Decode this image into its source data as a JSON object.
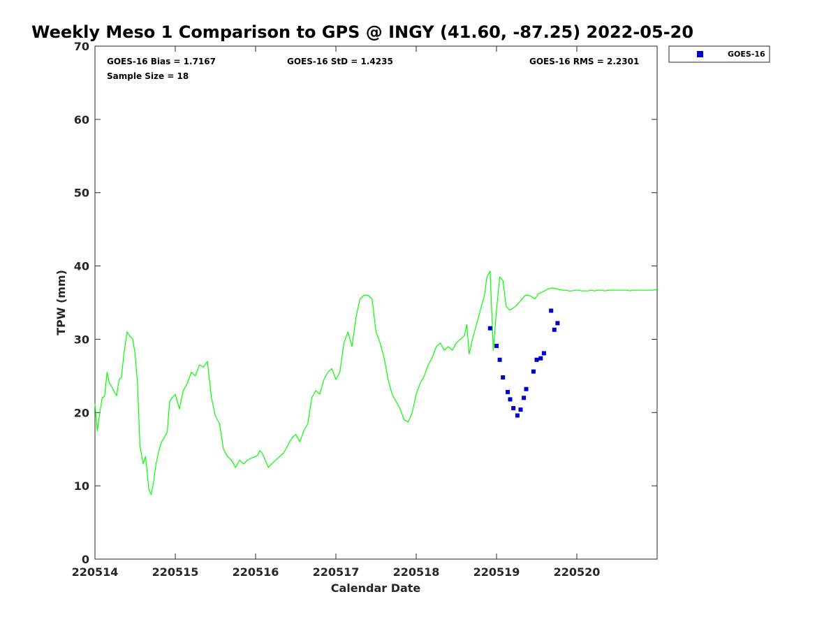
{
  "chart_data": {
    "type": "line",
    "title": "Weekly Meso 1 Comparison to GPS @ INGY (41.60, -87.25) 2022-05-20",
    "xlabel": "Calendar Date",
    "ylabel": "TPW (mm)",
    "xlim": [
      0,
      7
    ],
    "ylim": [
      0,
      70
    ],
    "x_tick_values": [
      0,
      1,
      2,
      3,
      4,
      5,
      6
    ],
    "x_tick_labels": [
      "220514",
      "220515",
      "220516",
      "220517",
      "220518",
      "220519",
      "220520"
    ],
    "y_ticks": [
      0,
      10,
      20,
      30,
      40,
      50,
      60,
      70
    ],
    "grid": false,
    "legend_position": "outside-top-right",
    "stats": {
      "bias": "GOES-16 Bias = 1.7167",
      "std": "GOES-16 StD = 1.4235",
      "rms": "GOES-16 RMS = 2.2301",
      "sample": "Sample Size = 18"
    },
    "series": [
      {
        "kind": "line",
        "color": "#00ff00",
        "x": [
          0.0,
          0.03,
          0.06,
          0.09,
          0.12,
          0.15,
          0.18,
          0.21,
          0.24,
          0.27,
          0.3,
          0.33,
          0.36,
          0.4,
          0.43,
          0.47,
          0.5,
          0.53,
          0.56,
          0.6,
          0.63,
          0.64,
          0.67,
          0.7,
          0.73,
          0.76,
          0.8,
          0.83,
          0.86,
          0.88,
          0.9,
          0.93,
          0.96,
          1.0,
          1.05,
          1.1,
          1.15,
          1.2,
          1.25,
          1.3,
          1.35,
          1.4,
          1.45,
          1.5,
          1.55,
          1.6,
          1.65,
          1.7,
          1.75,
          1.8,
          1.85,
          1.9,
          1.95,
          2.0,
          2.03,
          2.05,
          2.08,
          2.12,
          2.16,
          2.2,
          2.25,
          2.3,
          2.35,
          2.4,
          2.45,
          2.5,
          2.55,
          2.6,
          2.65,
          2.7,
          2.75,
          2.8,
          2.85,
          2.9,
          2.95,
          3.0,
          3.05,
          3.1,
          3.15,
          3.2,
          3.25,
          3.3,
          3.35,
          3.4,
          3.45,
          3.5,
          3.55,
          3.6,
          3.65,
          3.7,
          3.75,
          3.8,
          3.85,
          3.9,
          3.95,
          4.0,
          4.05,
          4.1,
          4.15,
          4.2,
          4.25,
          4.3,
          4.35,
          4.4,
          4.45,
          4.5,
          4.55,
          4.6,
          4.63,
          4.66,
          4.7,
          4.75,
          4.8,
          4.85,
          4.88,
          4.92,
          4.96,
          5.0,
          5.04,
          5.08,
          5.12,
          5.16,
          5.2,
          5.24,
          5.28,
          5.32,
          5.36,
          5.4,
          5.44,
          5.48,
          5.52,
          5.56,
          5.6,
          5.63,
          5.66,
          5.7,
          5.74,
          5.78,
          5.82,
          5.86,
          5.9,
          5.94,
          5.98,
          6.02,
          6.06,
          6.1,
          6.14,
          6.18,
          6.22,
          6.26,
          6.3,
          6.35,
          6.4,
          6.45,
          6.5,
          6.55,
          6.6,
          6.63,
          6.66,
          6.69,
          6.72,
          6.76,
          6.8,
          6.85,
          6.9,
          6.95,
          7.0
        ],
        "y": [
          21.2,
          17.5,
          20.0,
          22.0,
          22.2,
          25.5,
          24.0,
          23.5,
          22.8,
          22.3,
          24.5,
          24.8,
          28.0,
          31.0,
          30.5,
          30.0,
          28.0,
          24.0,
          15.5,
          13.0,
          14.0,
          13.0,
          9.5,
          8.8,
          10.5,
          13.0,
          15.0,
          16.0,
          16.5,
          17.0,
          17.3,
          21.5,
          22.0,
          22.5,
          20.5,
          23.0,
          24.0,
          25.5,
          25.0,
          26.5,
          26.2,
          27.0,
          22.0,
          19.5,
          18.5,
          15.0,
          14.0,
          13.5,
          12.5,
          13.5,
          13.0,
          13.5,
          13.8,
          14.0,
          14.2,
          14.8,
          14.5,
          13.5,
          12.5,
          13.0,
          13.5,
          14.0,
          14.5,
          15.5,
          16.5,
          17.0,
          16.0,
          17.5,
          18.5,
          22.0,
          23.0,
          22.5,
          24.5,
          25.5,
          26.0,
          24.5,
          25.5,
          29.5,
          31.0,
          29.0,
          33.0,
          35.5,
          36.0,
          36.0,
          35.5,
          31.0,
          29.5,
          27.5,
          24.5,
          22.5,
          21.5,
          20.5,
          19.0,
          18.7,
          20.0,
          22.5,
          24.0,
          25.0,
          26.5,
          27.5,
          29.0,
          29.5,
          28.5,
          29.0,
          28.5,
          29.5,
          30.0,
          30.5,
          32.0,
          28.0,
          30.0,
          32.0,
          34.0,
          36.0,
          38.5,
          39.3,
          28.5,
          34.0,
          38.5,
          38.0,
          34.5,
          34.0,
          34.2,
          34.5,
          35.0,
          35.5,
          36.0,
          36.0,
          35.8,
          35.5,
          36.2,
          36.4,
          36.6,
          36.8,
          36.9,
          37.0,
          36.9,
          36.8,
          36.7,
          36.7,
          36.6,
          36.6,
          36.7,
          36.7,
          36.6,
          36.6,
          36.6,
          36.7,
          36.6,
          36.7,
          36.7,
          36.6,
          36.7,
          36.7,
          36.7,
          36.7,
          36.7,
          36.7,
          36.6,
          36.7,
          36.7,
          36.7,
          36.7,
          36.7,
          36.7,
          36.7,
          36.8
        ]
      },
      {
        "name": "GOES-16",
        "kind": "scatter",
        "color": "#0000cc",
        "x": [
          4.92,
          5.0,
          5.04,
          5.08,
          5.14,
          5.17,
          5.21,
          5.26,
          5.3,
          5.34,
          5.37,
          5.46,
          5.5,
          5.55,
          5.59,
          5.68,
          5.72,
          5.76
        ],
        "y": [
          31.5,
          29.1,
          27.2,
          24.8,
          22.8,
          21.8,
          20.6,
          19.6,
          20.4,
          22.0,
          23.2,
          25.6,
          27.2,
          27.4,
          28.1,
          33.9,
          31.3,
          32.2
        ]
      }
    ]
  }
}
